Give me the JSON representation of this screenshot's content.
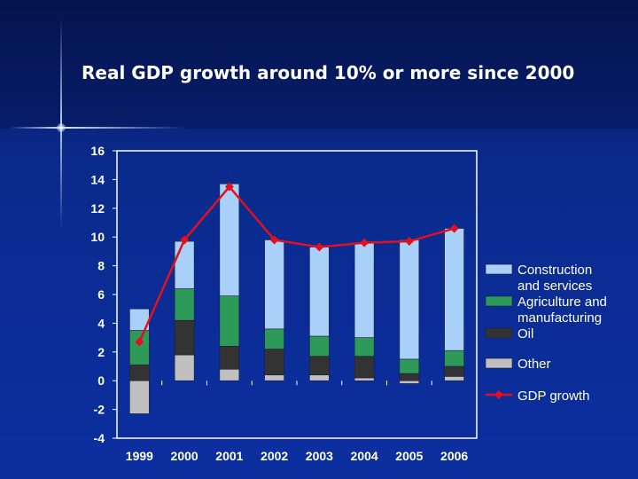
{
  "slide": {
    "title": "Real GDP growth around 10% or more since 2000"
  },
  "chart_data": {
    "type": "bar",
    "stacked": true,
    "categories": [
      "1999",
      "2000",
      "2001",
      "2002",
      "2003",
      "2004",
      "2005",
      "2006"
    ],
    "series": [
      {
        "name": "Other",
        "color": "#c0c0c0",
        "values": [
          -2.3,
          1.8,
          0.8,
          0.4,
          0.4,
          0.2,
          -0.2,
          0.3
        ]
      },
      {
        "name": "Oil",
        "color": "#333333",
        "values": [
          1.1,
          2.4,
          1.6,
          1.8,
          1.3,
          1.5,
          0.5,
          0.7
        ]
      },
      {
        "name": "Agriculture and manufacturing",
        "color": "#2e9a5a",
        "values": [
          2.4,
          2.2,
          3.5,
          1.4,
          1.4,
          1.3,
          1.0,
          1.1
        ]
      },
      {
        "name": "Construction and services",
        "color": "#a8d0f8",
        "values": [
          1.5,
          3.3,
          7.8,
          6.2,
          6.2,
          6.6,
          8.3,
          8.5
        ]
      },
      {
        "name": "GDP growth",
        "color": "#e01020",
        "type": "line",
        "values": [
          2.7,
          9.8,
          13.5,
          9.8,
          9.3,
          9.6,
          9.7,
          10.6
        ]
      }
    ],
    "legend": [
      {
        "label_lines": [
          "Construction",
          "and services"
        ],
        "series": "Construction and services"
      },
      {
        "label_lines": [
          "Agriculture and",
          "manufacturing"
        ],
        "series": "Agriculture and manufacturing"
      },
      {
        "label_lines": [
          "Oil"
        ],
        "series": "Oil"
      },
      {
        "label_lines": [
          "Other"
        ],
        "series": "Other"
      },
      {
        "label_lines": [
          "GDP growth"
        ],
        "series": "GDP growth"
      }
    ],
    "yticks": [
      "16",
      "14",
      "12",
      "10",
      "8",
      "6",
      "4",
      "2",
      "0",
      "-2",
      "-4"
    ],
    "ylim": [
      -4,
      16
    ],
    "grid": false,
    "legend_position": "right",
    "title": "",
    "xlabel": "",
    "ylabel": ""
  }
}
